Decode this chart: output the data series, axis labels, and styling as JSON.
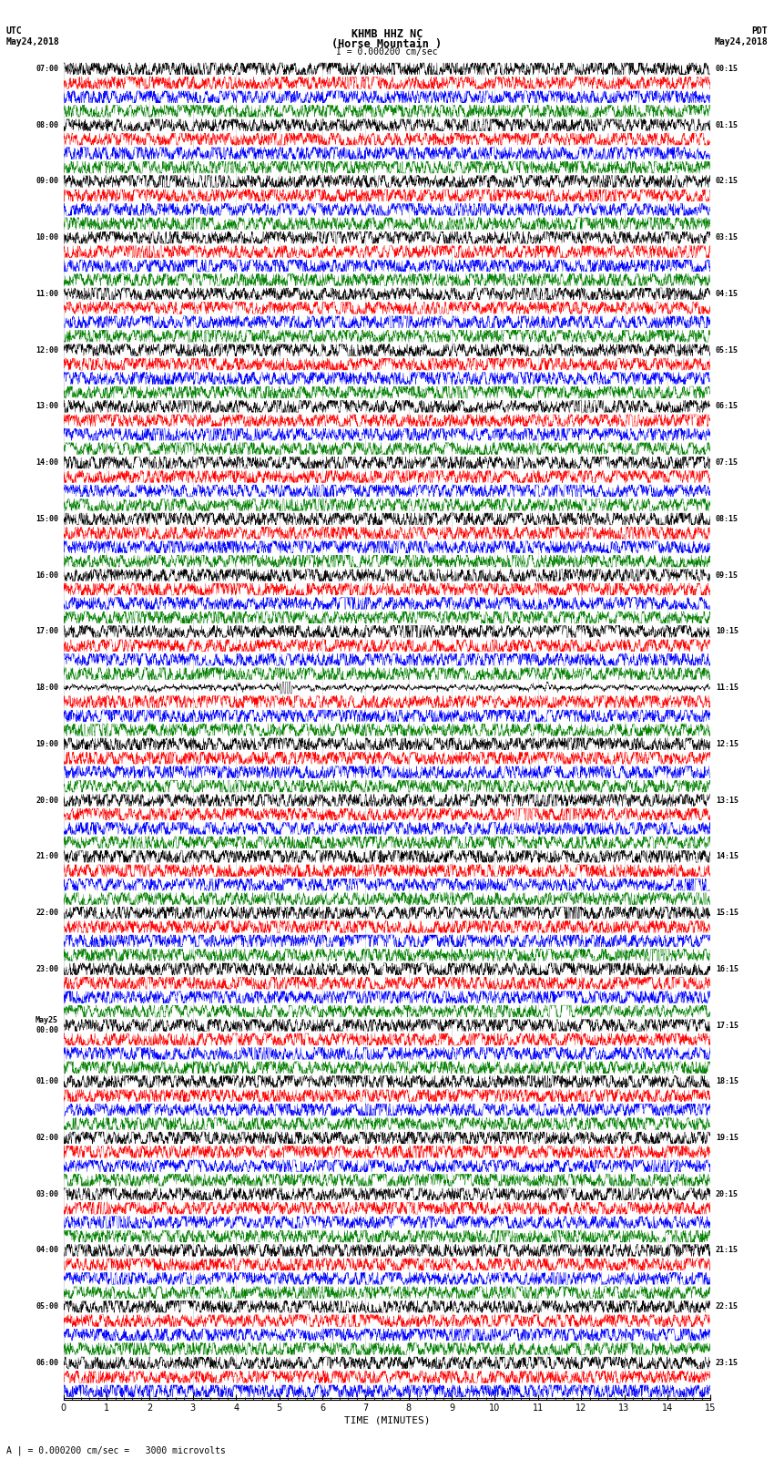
{
  "title_line1": "KHMB HHZ NC",
  "title_line2": "(Horse Mountain )",
  "scale_label": "I = 0.000200 cm/sec",
  "bottom_label": "A | = 0.000200 cm/sec =   3000 microvolts",
  "xlabel": "TIME (MINUTES)",
  "utc_label": "UTC\nMay24,2018",
  "pdt_label": "PDT\nMay24,2018",
  "left_times": [
    "07:00",
    "",
    "",
    "",
    "08:00",
    "",
    "",
    "",
    "09:00",
    "",
    "",
    "",
    "10:00",
    "",
    "",
    "",
    "11:00",
    "",
    "",
    "",
    "12:00",
    "",
    "",
    "",
    "13:00",
    "",
    "",
    "",
    "14:00",
    "",
    "",
    "",
    "15:00",
    "",
    "",
    "",
    "16:00",
    "",
    "",
    "",
    "17:00",
    "",
    "",
    "",
    "18:00",
    "",
    "",
    "",
    "19:00",
    "",
    "",
    "",
    "20:00",
    "",
    "",
    "",
    "21:00",
    "",
    "",
    "",
    "22:00",
    "",
    "",
    "",
    "23:00",
    "",
    "",
    "",
    "May25\n00:00",
    "",
    "",
    "",
    "01:00",
    "",
    "",
    "",
    "02:00",
    "",
    "",
    "",
    "03:00",
    "",
    "",
    "",
    "04:00",
    "",
    "",
    "",
    "05:00",
    "",
    "",
    "",
    "06:00",
    "",
    ""
  ],
  "right_times": [
    "00:15",
    "",
    "",
    "",
    "01:15",
    "",
    "",
    "",
    "02:15",
    "",
    "",
    "",
    "03:15",
    "",
    "",
    "",
    "04:15",
    "",
    "",
    "",
    "05:15",
    "",
    "",
    "",
    "06:15",
    "",
    "",
    "",
    "07:15",
    "",
    "",
    "",
    "08:15",
    "",
    "",
    "",
    "09:15",
    "",
    "",
    "",
    "10:15",
    "",
    "",
    "",
    "11:15",
    "",
    "",
    "",
    "12:15",
    "",
    "",
    "",
    "13:15",
    "",
    "",
    "",
    "14:15",
    "",
    "",
    "",
    "15:15",
    "",
    "",
    "",
    "16:15",
    "",
    "",
    "",
    "17:15",
    "",
    "",
    "",
    "18:15",
    "",
    "",
    "",
    "19:15",
    "",
    "",
    "",
    "20:15",
    "",
    "",
    "",
    "21:15",
    "",
    "",
    "",
    "22:15",
    "",
    "",
    "",
    "23:15",
    "",
    ""
  ],
  "colors": [
    "black",
    "red",
    "blue",
    "green"
  ],
  "n_rows": 95,
  "n_points": 3000,
  "fig_width": 8.5,
  "fig_height": 16.13,
  "bg_color": "white",
  "trace_amplitude": 0.42,
  "xmin": 0,
  "xmax": 15,
  "xticks": [
    0,
    1,
    2,
    3,
    4,
    5,
    6,
    7,
    8,
    9,
    10,
    11,
    12,
    13,
    14,
    15
  ],
  "grid_color": "#888888",
  "grid_alpha": 0.5,
  "grid_lw": 0.4
}
